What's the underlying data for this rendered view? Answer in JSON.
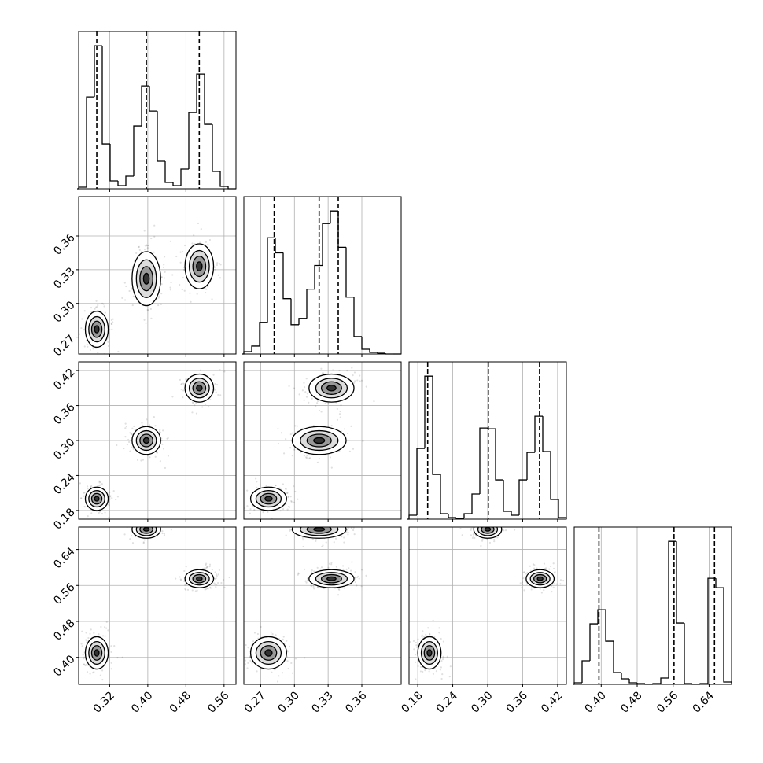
{
  "chart_data": {
    "type": "corner",
    "grid": true,
    "line_color": "#000000",
    "point_color": "#000000",
    "variables": [
      {
        "xlim": [
          0.255,
          0.585
        ],
        "xticks": [
          0.32,
          {
            "value": 0.4,
            "label": "0.40"
          },
          0.48,
          0.56
        ],
        "truths": [
          0.293,
          0.397,
          0.508
        ],
        "bins": [
          0.255,
          0.2715,
          0.288,
          0.3045,
          0.321,
          0.3375,
          0.354,
          0.3705,
          0.387,
          0.4035,
          0.42,
          0.4365,
          0.453,
          0.4695,
          0.486,
          0.5025,
          0.519,
          0.5355,
          0.552,
          0.5685,
          0.585
        ],
        "counts": [
          2,
          117,
          182,
          57,
          10,
          4,
          16,
          80,
          131,
          99,
          35,
          8,
          4,
          25,
          97,
          146,
          82,
          22,
          3,
          0
        ]
      },
      {
        "xlim": [
          0.255,
          0.395
        ],
        "xticks": [
          0.27,
          {
            "value": 0.3,
            "label": "0.30"
          },
          0.33,
          0.36
        ],
        "truths": [
          0.282,
          0.322,
          0.339
        ],
        "bins": [
          0.255,
          0.262,
          0.269,
          0.276,
          0.283,
          0.29,
          0.297,
          0.304,
          0.311,
          0.318,
          0.325,
          0.332,
          0.339,
          0.346,
          0.353,
          0.36,
          0.367,
          0.374,
          0.381,
          0.388,
          0.395
        ],
        "counts": [
          3,
          10,
          40,
          147,
          128,
          70,
          37,
          45,
          82,
          112,
          165,
          181,
          135,
          72,
          22,
          6,
          2,
          1,
          0,
          0
        ]
      },
      {
        "xlim": [
          0.165,
          0.435
        ],
        "xticks": [
          0.18,
          0.24,
          {
            "value": 0.3,
            "label": "0.30"
          },
          0.36,
          0.42
        ],
        "truths": [
          0.197,
          0.301,
          0.389
        ],
        "bins": [
          0.165,
          0.1785,
          0.192,
          0.2055,
          0.219,
          0.2325,
          0.246,
          0.2595,
          0.273,
          0.2865,
          0.3,
          0.3135,
          0.327,
          0.3405,
          0.354,
          0.3675,
          0.381,
          0.3945,
          0.408,
          0.4215,
          0.435
        ],
        "counts": [
          5,
          90,
          182,
          57,
          7,
          2,
          1,
          7,
          32,
          116,
          115,
          50,
          10,
          5,
          50,
          85,
          131,
          86,
          25,
          2
        ]
      },
      {
        "xlim": [
          0.34,
          0.69
        ],
        "xticks": [
          {
            "value": 0.4,
            "label": "0.40"
          },
          0.48,
          0.56,
          0.64
        ],
        "truths": [
          0.395,
          0.562,
          0.652
        ],
        "bins": [
          0.34,
          0.3575,
          0.375,
          0.3925,
          0.41,
          0.4275,
          0.445,
          0.4625,
          0.48,
          0.4975,
          0.515,
          0.5325,
          0.55,
          0.5675,
          0.585,
          0.6025,
          0.62,
          0.6375,
          0.655,
          0.6725,
          0.69
        ],
        "counts": [
          2,
          30,
          77,
          95,
          55,
          15,
          7,
          2,
          1,
          0,
          1,
          8,
          182,
          78,
          1,
          0,
          1,
          135,
          123,
          3
        ]
      }
    ],
    "components": [
      {
        "means": [
          0.293,
          0.277,
          0.2,
          0.41
        ],
        "stds": [
          0.012,
          0.008,
          0.01,
          0.018
        ]
      },
      {
        "means": [
          0.397,
          0.322,
          0.3,
          0.685
        ],
        "stds": [
          0.015,
          0.012,
          0.012,
          0.01
        ]
      },
      {
        "means": [
          0.508,
          0.333,
          0.39,
          0.575
        ],
        "stds": [
          0.015,
          0.01,
          0.012,
          0.01
        ]
      }
    ]
  }
}
